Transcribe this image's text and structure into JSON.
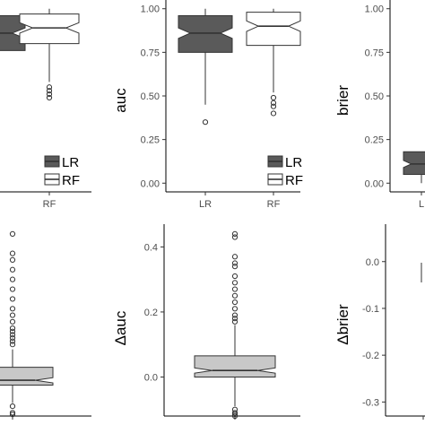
{
  "colors": {
    "LR": "#5a5a5a",
    "RF": "#ffffff",
    "delta": "#c8c8c8",
    "outline": "#333333"
  },
  "chart_data": [
    {
      "id": "p1",
      "type": "boxplot",
      "ylabel": "",
      "ylim": [
        -0.05,
        1.05
      ],
      "categories": [
        "LR",
        "RF"
      ],
      "x_tick_labels": [
        "",
        "RF"
      ],
      "yticks": [],
      "notched": true,
      "legend": {
        "position": "bottom-right",
        "entries": [
          "LR",
          "RF"
        ]
      },
      "series": [
        {
          "name": "LR",
          "q1": 0.76,
          "median": 0.86,
          "q3": 0.96,
          "notch": [
            0.83,
            0.89
          ],
          "whisker_low": 0.76,
          "whisker_high": 1.0,
          "outliers": []
        },
        {
          "name": "RF",
          "q1": 0.8,
          "median": 0.89,
          "q3": 0.97,
          "notch": [
            0.86,
            0.92
          ],
          "whisker_low": 0.58,
          "whisker_high": 1.0,
          "outliers": [
            0.55,
            0.53,
            0.51,
            0.49
          ]
        }
      ]
    },
    {
      "id": "p2",
      "type": "boxplot",
      "ylabel": "auc",
      "ylim": [
        -0.05,
        1.05
      ],
      "categories": [
        "LR",
        "RF"
      ],
      "x_tick_labels": [
        "LR",
        "RF"
      ],
      "yticks": [
        0,
        0.25,
        0.5,
        0.75,
        1
      ],
      "ytick_labels": [
        "0.00",
        "0.25",
        "0.50",
        "0.75",
        "1.00"
      ],
      "notched": true,
      "legend": {
        "position": "bottom-right",
        "entries": [
          "LR",
          "RF"
        ]
      },
      "series": [
        {
          "name": "LR",
          "q1": 0.75,
          "median": 0.86,
          "q3": 0.96,
          "notch": [
            0.83,
            0.89
          ],
          "whisker_low": 0.45,
          "whisker_high": 1.0,
          "outliers": [
            0.35
          ]
        },
        {
          "name": "RF",
          "q1": 0.79,
          "median": 0.9,
          "q3": 0.98,
          "notch": [
            0.87,
            0.93
          ],
          "whisker_low": 0.52,
          "whisker_high": 1.0,
          "outliers": [
            0.49,
            0.46,
            0.44,
            0.4
          ]
        }
      ]
    },
    {
      "id": "p3",
      "type": "boxplot",
      "ylabel": "brier",
      "ylim": [
        -0.05,
        1.05
      ],
      "categories": [
        "LR",
        "RF"
      ],
      "x_tick_labels": [
        "L",
        ""
      ],
      "yticks": [
        0,
        0.25,
        0.5,
        0.75,
        1
      ],
      "ytick_labels": [
        "0.00",
        "0.25",
        "0.50",
        "0.75",
        "1.00"
      ],
      "notched": true,
      "series": [
        {
          "name": "LR",
          "q1": 0.05,
          "median": 0.11,
          "q3": 0.18,
          "notch": [
            0.09,
            0.13
          ],
          "whisker_low": 0.0,
          "whisker_high": 0.18,
          "outliers": []
        }
      ]
    },
    {
      "id": "p4",
      "type": "boxplot",
      "ylabel": "",
      "ylim": [
        -0.12,
        0.47
      ],
      "categories": [
        "Δ"
      ],
      "x_tick_labels": [
        ""
      ],
      "yticks": [],
      "notched": true,
      "series": [
        {
          "name": "Δ",
          "q1": -0.025,
          "median": -0.01,
          "q3": 0.03,
          "notch": [
            -0.018,
            -0.002
          ],
          "whisker_low": -0.08,
          "whisker_high": 0.085,
          "outliers": [
            0.44,
            0.38,
            0.36,
            0.33,
            0.3,
            0.27,
            0.24,
            0.21,
            0.19,
            0.17,
            0.15,
            0.14,
            0.13,
            0.12,
            0.11,
            0.1,
            -0.09,
            -0.11,
            -0.115
          ]
        }
      ]
    },
    {
      "id": "p5",
      "type": "boxplot",
      "ylabel": "Δauc",
      "ylim": [
        -0.12,
        0.47
      ],
      "categories": [
        "Δ"
      ],
      "x_tick_labels": [
        ""
      ],
      "yticks": [
        0,
        0.2,
        0.4
      ],
      "ytick_labels": [
        "0.0",
        "0.2",
        "0.4"
      ],
      "notched": true,
      "series": [
        {
          "name": "Δ",
          "q1": 0.0,
          "median": 0.02,
          "q3": 0.065,
          "notch": [
            0.012,
            0.028
          ],
          "whisker_low": -0.09,
          "whisker_high": 0.16,
          "outliers": [
            0.44,
            0.43,
            0.37,
            0.35,
            0.34,
            0.31,
            0.29,
            0.27,
            0.25,
            0.23,
            0.21,
            0.19,
            0.18,
            0.17,
            -0.1,
            -0.11,
            -0.115,
            -0.12
          ]
        }
      ]
    },
    {
      "id": "p6",
      "type": "boxplot",
      "ylabel": "Δbrier",
      "ylim": [
        -0.33,
        0.08
      ],
      "categories": [
        "Δ"
      ],
      "x_tick_labels": [
        ""
      ],
      "yticks": [
        0,
        -0.1,
        -0.2,
        -0.3
      ],
      "ytick_labels": [
        "0.0",
        "-0.1",
        "-0.2",
        "-0.3"
      ],
      "notched": true,
      "series": []
    }
  ]
}
